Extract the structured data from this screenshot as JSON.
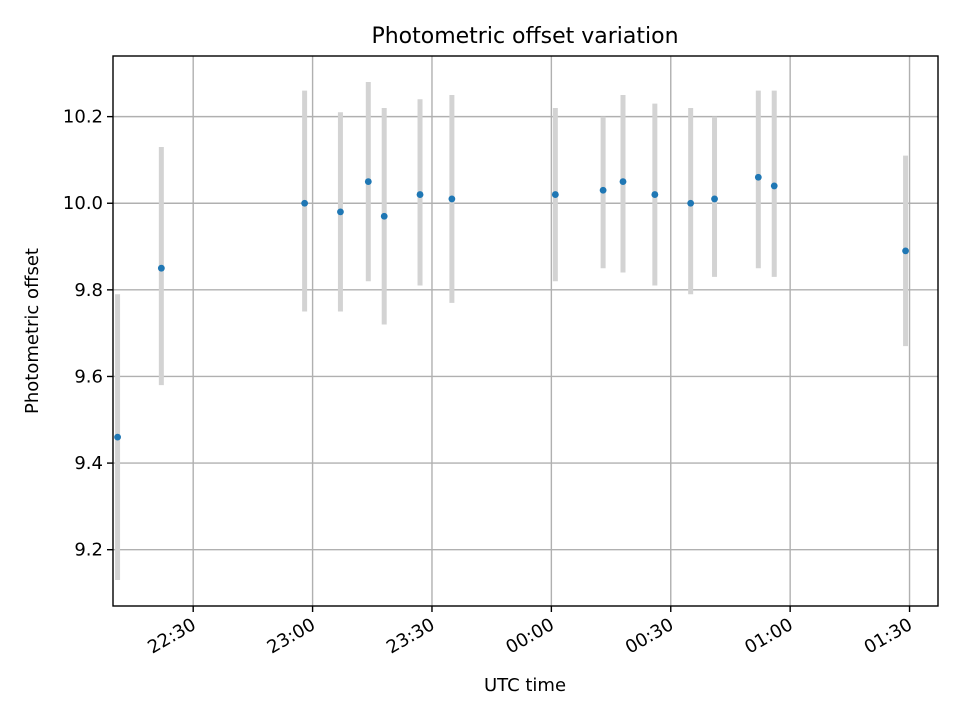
{
  "chart_data": {
    "type": "scatter",
    "title": "Photometric offset variation",
    "xlabel": "UTC time",
    "ylabel": "Photometric offset",
    "x_axis_type": "time",
    "xlim": [
      "22:21",
      "01:36"
    ],
    "ylim": [
      9.07,
      10.34
    ],
    "x_ticks": [
      "22:30",
      "23:00",
      "23:30",
      "00:00",
      "00:30",
      "01:00",
      "01:30"
    ],
    "y_ticks": [
      9.2,
      9.4,
      9.6,
      9.8,
      10.0,
      10.2
    ],
    "grid": true,
    "point_color": "#1f77b4",
    "errorbar_color": "#d3d3d3",
    "points": [
      {
        "time": "22:11",
        "y": 9.46,
        "ylow": 9.13,
        "yhigh": 9.79
      },
      {
        "time": "22:22",
        "y": 9.85,
        "ylow": 9.58,
        "yhigh": 10.13
      },
      {
        "time": "22:58",
        "y": 10.0,
        "ylow": 9.75,
        "yhigh": 10.26
      },
      {
        "time": "23:07",
        "y": 9.98,
        "ylow": 9.75,
        "yhigh": 10.21
      },
      {
        "time": "23:14",
        "y": 10.05,
        "ylow": 9.82,
        "yhigh": 10.28
      },
      {
        "time": "23:18",
        "y": 9.97,
        "ylow": 9.72,
        "yhigh": 10.22
      },
      {
        "time": "23:27",
        "y": 10.02,
        "ylow": 9.81,
        "yhigh": 10.24
      },
      {
        "time": "23:35",
        "y": 10.01,
        "ylow": 9.77,
        "yhigh": 10.25
      },
      {
        "time": "00:01",
        "y": 10.02,
        "ylow": 9.82,
        "yhigh": 10.22
      },
      {
        "time": "00:13",
        "y": 10.03,
        "ylow": 9.85,
        "yhigh": 10.2
      },
      {
        "time": "00:18",
        "y": 10.05,
        "ylow": 9.84,
        "yhigh": 10.25
      },
      {
        "time": "00:26",
        "y": 10.02,
        "ylow": 9.81,
        "yhigh": 10.23
      },
      {
        "time": "00:35",
        "y": 10.0,
        "ylow": 9.79,
        "yhigh": 10.22
      },
      {
        "time": "00:41",
        "y": 10.01,
        "ylow": 9.83,
        "yhigh": 10.2
      },
      {
        "time": "00:52",
        "y": 10.06,
        "ylow": 9.85,
        "yhigh": 10.26
      },
      {
        "time": "00:56",
        "y": 10.04,
        "ylow": 9.83,
        "yhigh": 10.26
      },
      {
        "time": "01:29",
        "y": 9.89,
        "ylow": 9.67,
        "yhigh": 10.11
      }
    ]
  }
}
